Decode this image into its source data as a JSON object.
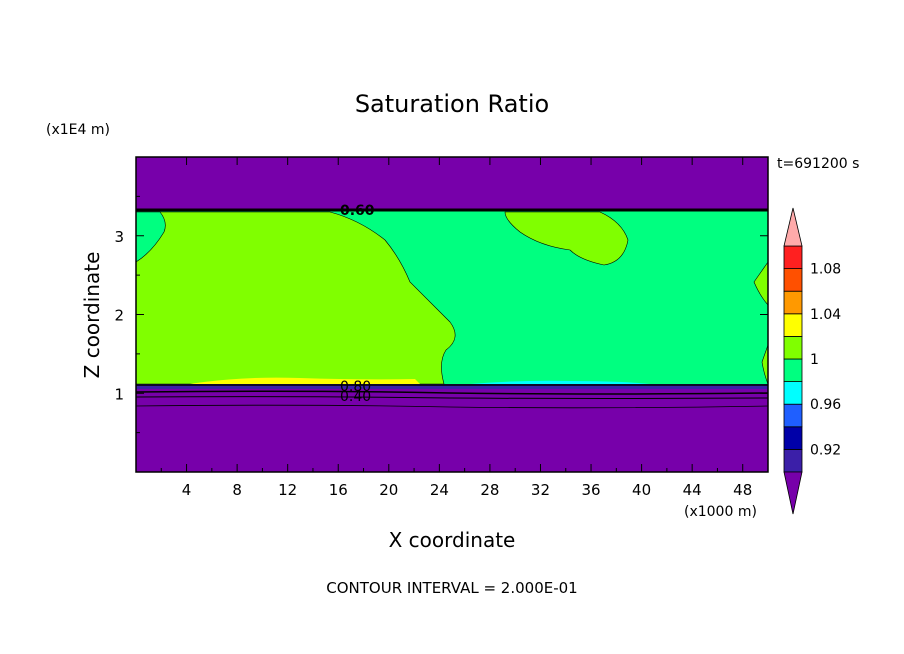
{
  "chart_data": {
    "type": "heatmap",
    "title": "Saturation Ratio",
    "xlabel": "X coordinate",
    "ylabel": "Z coordinate",
    "x_unit": "(x1000 m)",
    "y_unit": "(x1E4 m)",
    "time_label": "t=691200 s",
    "footer": "CONTOUR INTERVAL = 2.000E-01",
    "xlim": [
      0,
      50
    ],
    "ylim": [
      0,
      4
    ],
    "x_ticks": [
      "4",
      "8",
      "12",
      "16",
      "20",
      "24",
      "28",
      "32",
      "36",
      "40",
      "44",
      "48"
    ],
    "y_ticks": [
      "1",
      "2",
      "3"
    ],
    "contour_labels": [
      "0.60",
      "0.80",
      "0.40"
    ],
    "colorbar": {
      "labels": [
        "0.92",
        "0.96",
        "1",
        "1.04",
        "1.08"
      ],
      "levels": [
        0.9,
        0.92,
        0.94,
        0.96,
        0.98,
        1.0,
        1.02,
        1.04,
        1.06,
        1.08,
        1.1
      ],
      "colors": [
        "#7700aa",
        "#3b1fa8",
        "#0000a8",
        "#1f5fff",
        "#00ffff",
        "#00ff80",
        "#80ff00",
        "#ffff00",
        "#ff9900",
        "#ff5000",
        "#ff2020",
        "#ffaaaa"
      ]
    },
    "fields": {
      "dry_layer_top_z": [
        3.3,
        4.0
      ],
      "moist_layer_z": [
        1.1,
        3.3
      ],
      "dry_layer_bottom_z": [
        0.0,
        1.1
      ],
      "green_region_value": 1.01,
      "teal_region_value": 0.99
    }
  }
}
